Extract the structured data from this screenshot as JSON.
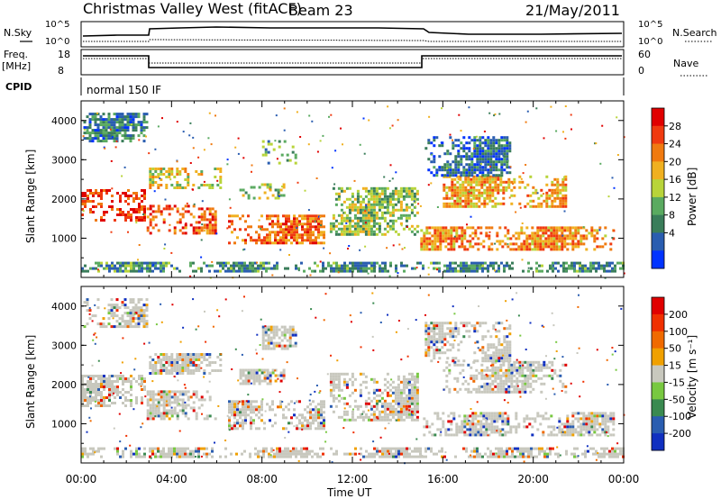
{
  "header": {
    "title": "Christmas Valley West (fitACF)",
    "beam": "Beam 23",
    "date": "21/May/2011"
  },
  "summary": {
    "nsky_label": "N.Sky",
    "nsearch_label": "N.Search",
    "freq_label_1": "Freq.",
    "freq_label_2": "[MHz]",
    "nave_label": "Nave",
    "cpid_label": "CPID",
    "cpid_text": "normal 150 IF",
    "noise_ticks": [
      "10^5",
      "10^0"
    ],
    "freq_ticks": [
      "18",
      "8"
    ],
    "nave_ticks": [
      "60",
      "0"
    ]
  },
  "chart_data": [
    {
      "type": "heatmap",
      "name": "power",
      "ylabel": "Slant Range [km]",
      "xlabel": "Time UT",
      "x_ticks": [
        "00:00",
        "04:00",
        "08:00",
        "12:00",
        "16:00",
        "20:00",
        "00:00"
      ],
      "y_ticks": [
        "1000",
        "2000",
        "3000",
        "4000"
      ],
      "ylim": [
        0,
        4500
      ],
      "xlim_hours": [
        0,
        24
      ],
      "colorbar": {
        "label": "Power [dB]",
        "ticks": [
          "28",
          "24",
          "20",
          "16",
          "12",
          "8",
          "4"
        ],
        "colors": [
          "#0033ff",
          "#2a5db0",
          "#3a7d5a",
          "#5aaa60",
          "#b8d43a",
          "#f0b020",
          "#f07a10",
          "#f03a10",
          "#e00000"
        ]
      },
      "regions": [
        {
          "t0": 0.0,
          "t1": 2.8,
          "r0": 1450,
          "r1": 2250,
          "level": 0.85
        },
        {
          "t0": 0.1,
          "t1": 2.9,
          "r0": 3500,
          "r1": 4200,
          "level": 0.25
        },
        {
          "t0": 2.9,
          "t1": 6.0,
          "r0": 1150,
          "r1": 1850,
          "level": 0.8
        },
        {
          "t0": 3.0,
          "t1": 6.2,
          "r0": 2300,
          "r1": 2800,
          "level": 0.55
        },
        {
          "t0": 6.5,
          "t1": 10.8,
          "r0": 900,
          "r1": 1600,
          "level": 0.75
        },
        {
          "t0": 7.0,
          "t1": 9.0,
          "r0": 2000,
          "r1": 2400,
          "level": 0.45
        },
        {
          "t0": 8.0,
          "t1": 9.5,
          "r0": 2900,
          "r1": 3500,
          "level": 0.35
        },
        {
          "t0": 11.0,
          "t1": 14.9,
          "r0": 1100,
          "r1": 2300,
          "level": 0.45
        },
        {
          "t0": 15.0,
          "t1": 23.6,
          "r0": 700,
          "r1": 1300,
          "level": 0.7
        },
        {
          "t0": 16.0,
          "t1": 21.5,
          "r0": 1800,
          "r1": 2600,
          "level": 0.65
        },
        {
          "t0": 15.2,
          "t1": 19.0,
          "r0": 2600,
          "r1": 3600,
          "level": 0.2
        },
        {
          "t0": 0.0,
          "t1": 24.0,
          "r0": 150,
          "r1": 400,
          "level": 0.3
        }
      ]
    },
    {
      "type": "heatmap",
      "name": "velocity",
      "ylabel": "Slant Range [km]",
      "xlabel": "Time UT",
      "x_ticks": [
        "00:00",
        "04:00",
        "08:00",
        "12:00",
        "16:00",
        "20:00",
        "00:00"
      ],
      "y_ticks": [
        "1000",
        "2000",
        "3000",
        "4000"
      ],
      "ylim": [
        0,
        4500
      ],
      "xlim_hours": [
        0,
        24
      ],
      "colorbar": {
        "label": "Velocity [m s⁻¹]",
        "ticks": [
          "200",
          "100",
          "50",
          "15",
          "-15",
          "-50",
          "-100",
          "-200"
        ],
        "colors": [
          "#1030c0",
          "#2a5db0",
          "#3a8a50",
          "#78c840",
          "#c8c8be",
          "#f0a000",
          "#f06a00",
          "#f03000",
          "#e00000"
        ]
      },
      "regions": [
        {
          "t0": 0.0,
          "t1": 2.8,
          "r0": 1450,
          "r1": 2250,
          "level": 0.45
        },
        {
          "t0": 0.1,
          "t1": 2.9,
          "r0": 3500,
          "r1": 4200,
          "level": 0.45
        },
        {
          "t0": 2.9,
          "t1": 6.0,
          "r0": 1150,
          "r1": 1850,
          "level": 0.45
        },
        {
          "t0": 3.0,
          "t1": 6.2,
          "r0": 2300,
          "r1": 2800,
          "level": 0.1
        },
        {
          "t0": 6.5,
          "t1": 10.8,
          "r0": 900,
          "r1": 1600,
          "level": 0.7
        },
        {
          "t0": 7.0,
          "t1": 9.0,
          "r0": 2000,
          "r1": 2400,
          "level": 0.3
        },
        {
          "t0": 8.0,
          "t1": 9.5,
          "r0": 2900,
          "r1": 3500,
          "level": 0.45
        },
        {
          "t0": 11.0,
          "t1": 14.9,
          "r0": 1100,
          "r1": 2300,
          "level": 0.45
        },
        {
          "t0": 15.0,
          "t1": 23.6,
          "r0": 700,
          "r1": 1300,
          "level": 0.45
        },
        {
          "t0": 16.0,
          "t1": 21.5,
          "r0": 1800,
          "r1": 2600,
          "level": 0.45
        },
        {
          "t0": 15.2,
          "t1": 19.0,
          "r0": 2600,
          "r1": 3600,
          "level": 0.45
        },
        {
          "t0": 0.0,
          "t1": 24.0,
          "r0": 150,
          "r1": 400,
          "level": 0.35
        }
      ]
    }
  ]
}
